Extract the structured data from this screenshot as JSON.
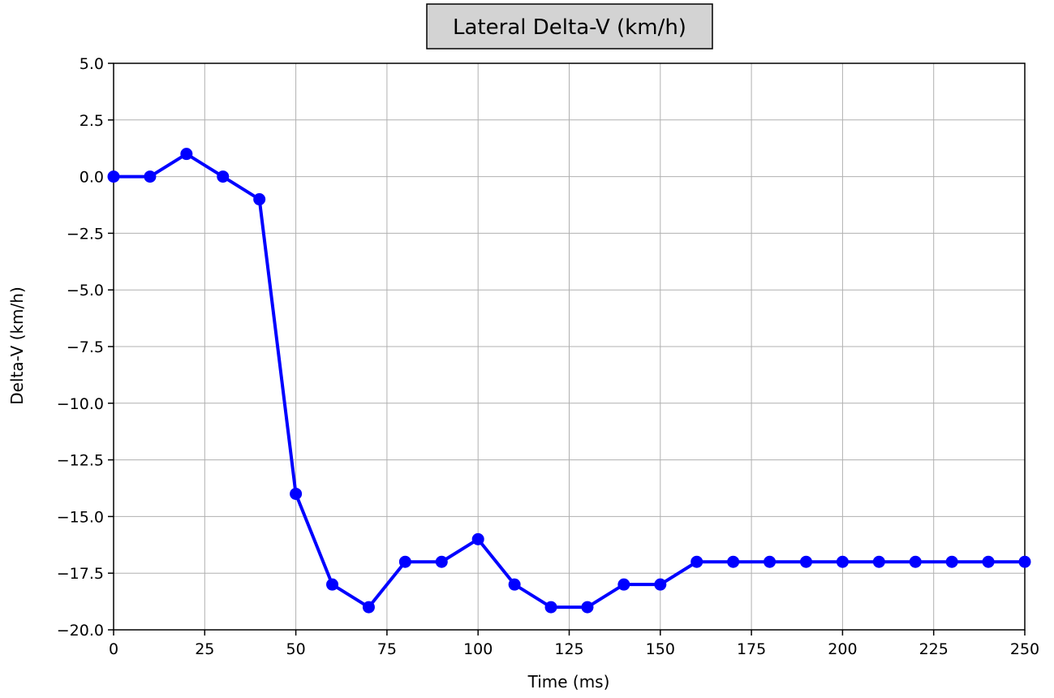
{
  "chart_data": {
    "type": "line",
    "title": "Lateral Delta-V (km/h)",
    "xlabel": "Time (ms)",
    "ylabel": "Delta-V (km/h)",
    "xlim": [
      0,
      250
    ],
    "ylim": [
      -20,
      5
    ],
    "x_ticks": [
      0,
      25,
      50,
      75,
      100,
      125,
      150,
      175,
      200,
      225,
      250
    ],
    "y_ticks": [
      5.0,
      2.5,
      0.0,
      -2.5,
      -5.0,
      -7.5,
      -10.0,
      -12.5,
      -15.0,
      -17.5,
      -20.0
    ],
    "x_tick_labels": [
      "0",
      "25",
      "50",
      "75",
      "100",
      "125",
      "150",
      "175",
      "200",
      "225",
      "250"
    ],
    "y_tick_labels": [
      "5.0",
      "2.5",
      "0.0",
      "−2.5",
      "−5.0",
      "−7.5",
      "−10.0",
      "−12.5",
      "−15.0",
      "−17.5",
      "−20.0"
    ],
    "grid": true,
    "title_box": true,
    "series": [
      {
        "color": "#0000ff",
        "marker": "circle",
        "x": [
          0,
          10,
          20,
          30,
          40,
          50,
          60,
          70,
          80,
          90,
          100,
          110,
          120,
          130,
          140,
          150,
          160,
          170,
          180,
          190,
          200,
          210,
          220,
          230,
          240,
          250
        ],
        "y": [
          0,
          0,
          1,
          0,
          -1,
          -14,
          -18,
          -19,
          -17,
          -17,
          -16,
          -18,
          -19,
          -19,
          -18,
          -18,
          -17,
          -17,
          -17,
          -17,
          -17,
          -17,
          -17,
          -17,
          -17,
          -17
        ]
      }
    ]
  }
}
